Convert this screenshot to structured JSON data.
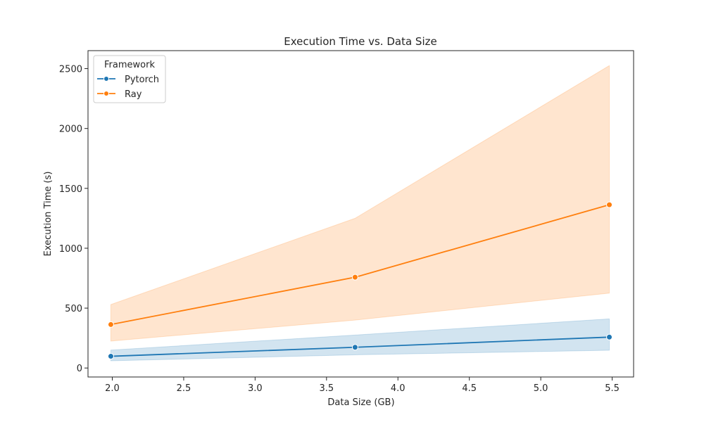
{
  "chart_data": {
    "type": "line",
    "title": "Execution Time vs. Data Size",
    "xlabel": "Data Size (GB)",
    "ylabel": "Execution Time (s)",
    "xlim": [
      1.83,
      5.65
    ],
    "ylim": [
      -75,
      2650
    ],
    "xticks": [
      2.0,
      2.5,
      3.0,
      3.5,
      4.0,
      4.5,
      5.0,
      5.5
    ],
    "xtick_labels": [
      "2.0",
      "2.5",
      "3.0",
      "3.5",
      "4.0",
      "4.5",
      "5.0",
      "5.5"
    ],
    "yticks": [
      0,
      500,
      1000,
      1500,
      2000,
      2500
    ],
    "ytick_labels": [
      "0",
      "500",
      "1000",
      "1500",
      "2000",
      "2500"
    ],
    "grid": false,
    "legend": {
      "title": "Framework",
      "placement": "top-left"
    },
    "series": [
      {
        "name": "Pytorch",
        "color": "#1f77b4",
        "x": [
          1.99,
          3.7,
          5.48
        ],
        "y": [
          98,
          173,
          258
        ],
        "ci_lower": [
          60,
          110,
          148
        ],
        "ci_upper": [
          150,
          275,
          410
        ]
      },
      {
        "name": "Ray",
        "color": "#ff7f0e",
        "x": [
          1.99,
          3.7,
          5.48
        ],
        "y": [
          363,
          758,
          1363
        ],
        "ci_lower": [
          225,
          400,
          625
        ],
        "ci_upper": [
          530,
          1250,
          2525
        ]
      }
    ]
  }
}
